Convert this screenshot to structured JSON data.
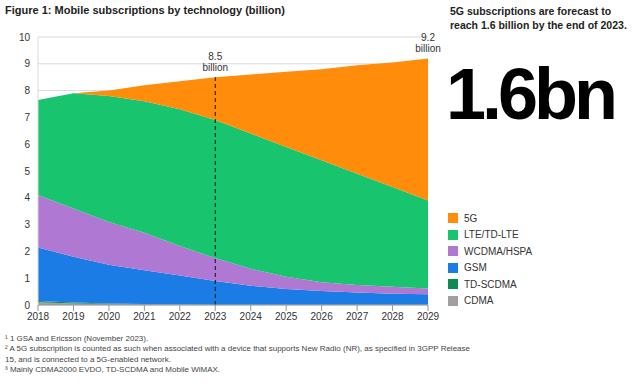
{
  "chart_data": {
    "type": "area",
    "title": "Figure 1: Mobile subscriptions by technology (billion)",
    "stacked": true,
    "grid": true,
    "x": [
      2018,
      2019,
      2020,
      2021,
      2022,
      2023,
      2024,
      2025,
      2026,
      2027,
      2028,
      2029
    ],
    "xlim": [
      2018,
      2029
    ],
    "xticks": [
      2018,
      2019,
      2020,
      2021,
      2022,
      2023,
      2024,
      2025,
      2026,
      2027,
      2028,
      2029
    ],
    "ylim": [
      0,
      10
    ],
    "yticks": [
      0,
      1,
      2,
      3,
      4,
      5,
      6,
      7,
      8,
      9,
      10
    ],
    "series": [
      {
        "name": "5G",
        "color": "#ff8c0a",
        "values": [
          0,
          0,
          0.2,
          0.6,
          1.05,
          1.6,
          2.2,
          2.8,
          3.4,
          4.05,
          4.65,
          5.3
        ]
      },
      {
        "name": "LTE/TD-LTE",
        "color": "#18c46e",
        "values": [
          3.55,
          4.3,
          4.7,
          4.9,
          5.1,
          5.15,
          5.05,
          4.85,
          4.55,
          4.15,
          3.72,
          3.28
        ]
      },
      {
        "name": "WCDMA/HSPA",
        "color": "#af78d2",
        "values": [
          1.95,
          1.8,
          1.6,
          1.4,
          1.1,
          0.85,
          0.63,
          0.45,
          0.33,
          0.28,
          0.26,
          0.22
        ]
      },
      {
        "name": "GSM",
        "color": "#1c7ce6",
        "values": [
          2.0,
          1.71,
          1.44,
          1.26,
          1.07,
          0.89,
          0.71,
          0.59,
          0.51,
          0.46,
          0.41,
          0.39
        ]
      },
      {
        "name": "TD-SCDMA",
        "color": "#0d8a55",
        "values": [
          0.05,
          0.03,
          0.02,
          0.01,
          0.01,
          0,
          0,
          0,
          0,
          0,
          0,
          0
        ]
      },
      {
        "name": "CDMA",
        "color": "#a0a0a0",
        "values": [
          0.1,
          0.06,
          0.04,
          0.03,
          0.02,
          0.01,
          0.01,
          0.01,
          0.01,
          0.01,
          0.01,
          0.01
        ]
      }
    ],
    "annotations": [
      {
        "text": "8.5 billion",
        "x": 2023,
        "y": 8.5,
        "line_style": "dashed"
      },
      {
        "text": "9.2 billion",
        "x": 2029,
        "y": 9.2
      }
    ],
    "side_text": "5G subscriptions are forecast to reach 1.6 billion by the end of 2023.",
    "highlight": "1.6bn",
    "footnotes": [
      "¹ 1 GSA and Ericsson (November 2023).",
      "² A 5G subscription is counted as such when associated with a device that supports New Radio (NR), as specified in 3GPP Release 15, and is connected to a 5G-enabled network.",
      "³ Mainly CDMA2000 EVDO, TD-SCDMA and Mobile WiMAX."
    ]
  }
}
